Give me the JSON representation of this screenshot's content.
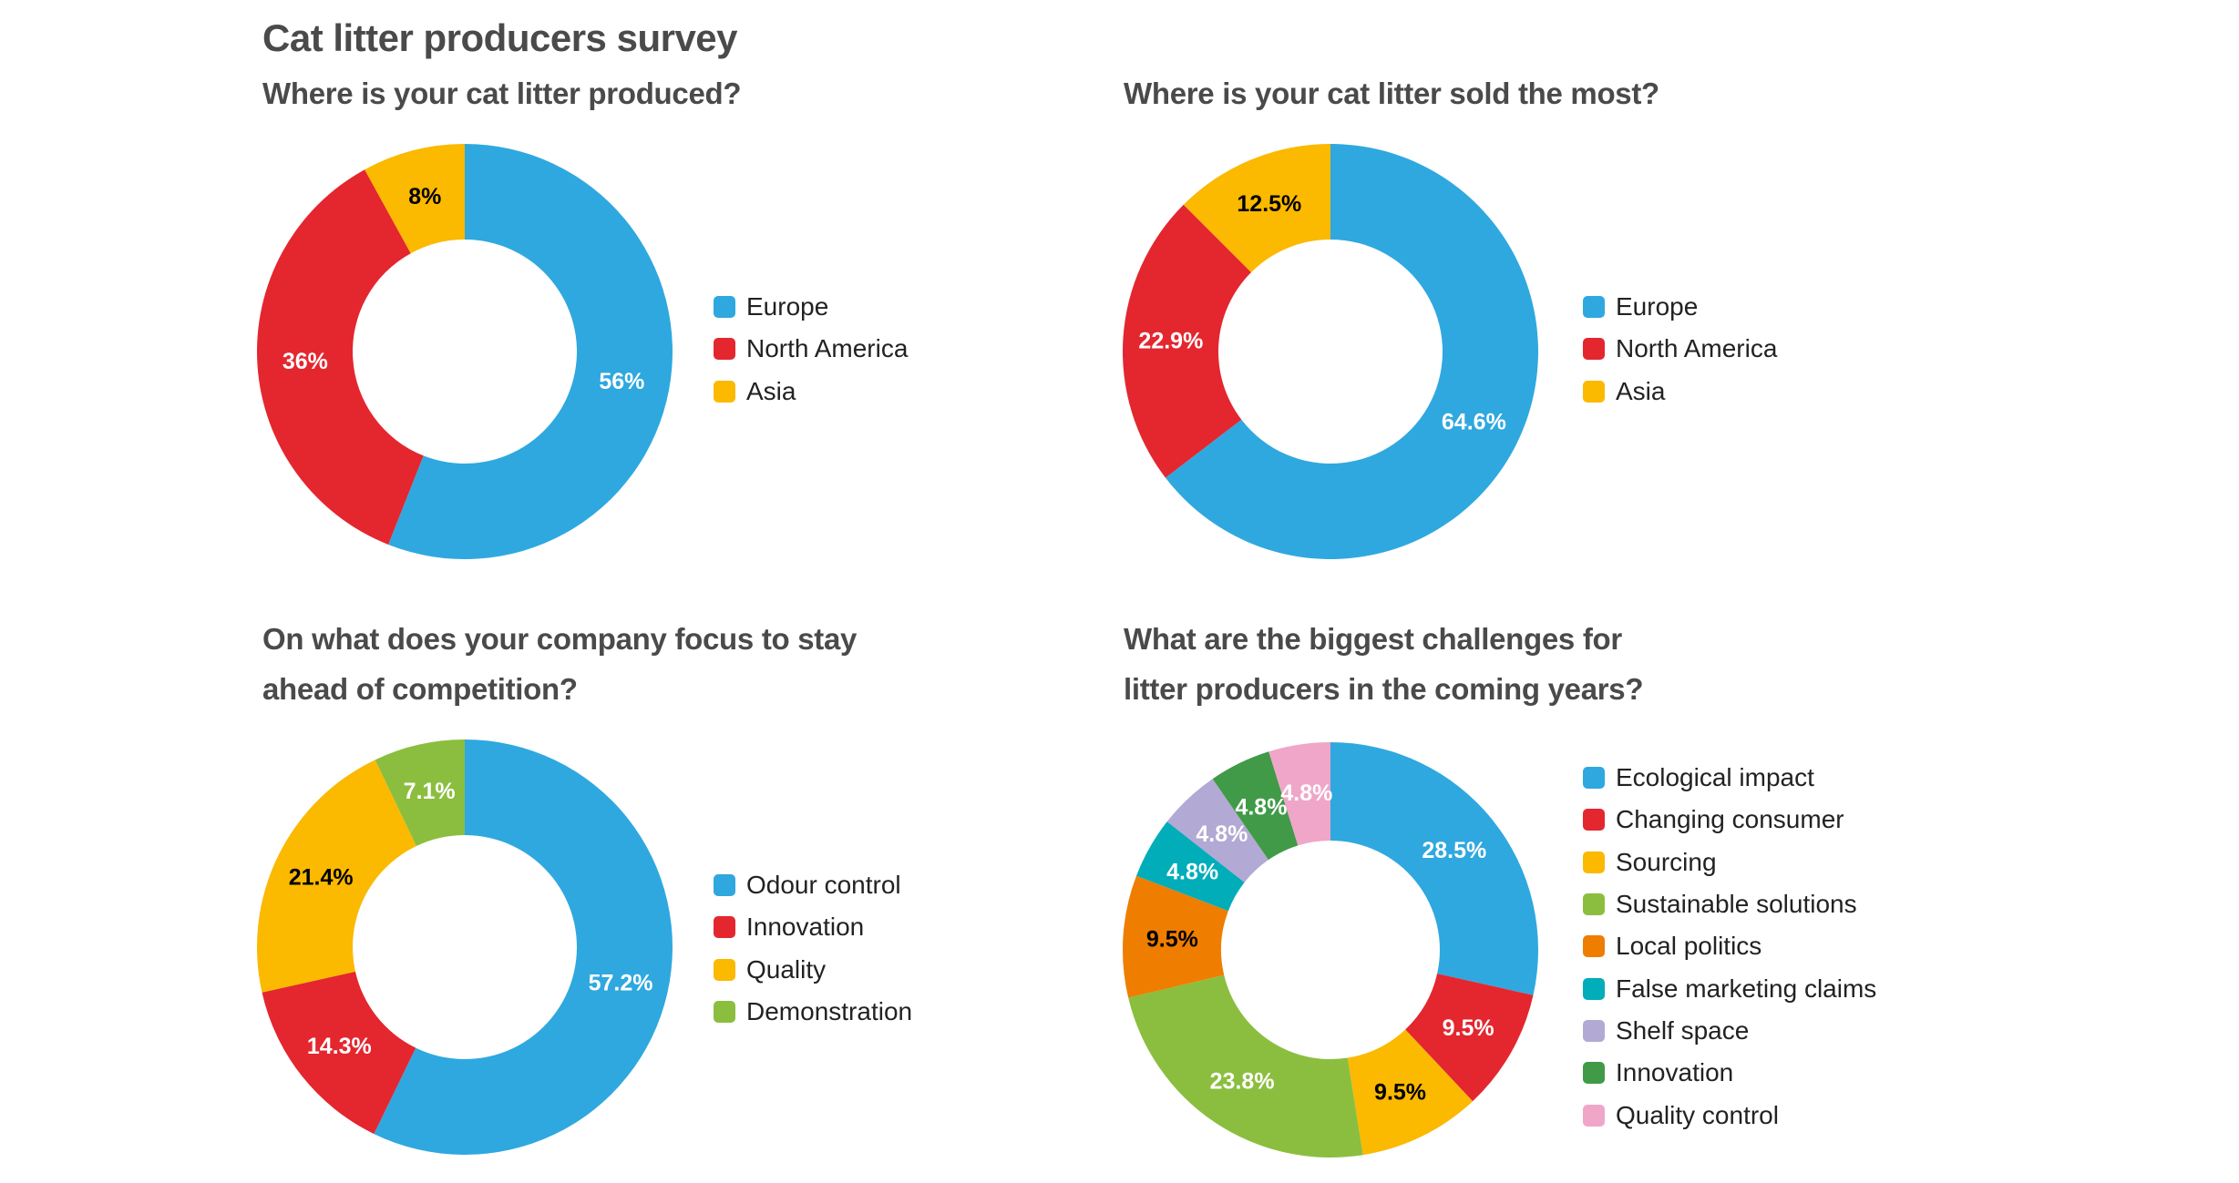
{
  "title": "Cat litter producers survey",
  "chart_data": [
    {
      "type": "pie",
      "title": "Where is your cat litter produced?",
      "categories": [
        "Europe",
        "North America",
        "Asia"
      ],
      "values": [
        56,
        36,
        8
      ],
      "labels": [
        "56%",
        "36%",
        "8%"
      ],
      "colors": [
        "#2fa8df",
        "#e4262f",
        "#fbb900"
      ],
      "label_colors": [
        "#ffffff",
        "#ffffff",
        "#000000"
      ],
      "legend": "right"
    },
    {
      "type": "pie",
      "title": "Where is your cat litter sold the most?",
      "categories": [
        "Europe",
        "North America",
        "Asia"
      ],
      "values": [
        64.6,
        22.9,
        12.5
      ],
      "labels": [
        "64.6%",
        "22.9%",
        "12.5%"
      ],
      "colors": [
        "#2fa8df",
        "#e4262f",
        "#fbb900"
      ],
      "label_colors": [
        "#ffffff",
        "#ffffff",
        "#000000"
      ],
      "legend": "right"
    },
    {
      "type": "pie",
      "title": "On what does your company focus to stay ahead of competition?",
      "title_lines": [
        "On what does your company focus to stay",
        "ahead of competition?"
      ],
      "categories": [
        "Odour control",
        "Innovation",
        "Quality",
        "Demonstration"
      ],
      "values": [
        57.2,
        14.3,
        21.4,
        7.1
      ],
      "labels": [
        "57.2%",
        "14.3%",
        "21.4%",
        "7.1%"
      ],
      "colors": [
        "#2fa8df",
        "#e4262f",
        "#fbb900",
        "#8bbe3f"
      ],
      "label_colors": [
        "#ffffff",
        "#ffffff",
        "#000000",
        "#ffffff"
      ],
      "legend": "right"
    },
    {
      "type": "pie",
      "title": "What are the biggest challenges for litter producers in the coming years?",
      "title_lines": [
        "What are the biggest challenges for",
        "litter producers in the coming years?"
      ],
      "categories": [
        "Ecological impact",
        "Changing consumer",
        "Sourcing",
        "Sustainable solutions",
        "Local politics",
        "False marketing claims",
        "Shelf space",
        "Innovation",
        "Quality control"
      ],
      "values": [
        28.5,
        9.5,
        9.5,
        23.8,
        9.5,
        4.8,
        4.8,
        4.8,
        4.8
      ],
      "labels": [
        "28.5%",
        "9.5%",
        "9.5%",
        "23.8%",
        "9.5%",
        "4.8%",
        "4.8%",
        "4.8%",
        "4.8%"
      ],
      "colors": [
        "#2fa8df",
        "#e4262f",
        "#fbb900",
        "#8bbe3f",
        "#ef7d00",
        "#00adb9",
        "#b2a9d4",
        "#409a47",
        "#f0a6c8"
      ],
      "label_colors": [
        "#ffffff",
        "#ffffff",
        "#000000",
        "#ffffff",
        "#000000",
        "#ffffff",
        "#ffffff",
        "#ffffff",
        "#ffffff"
      ],
      "legend": "right"
    }
  ]
}
